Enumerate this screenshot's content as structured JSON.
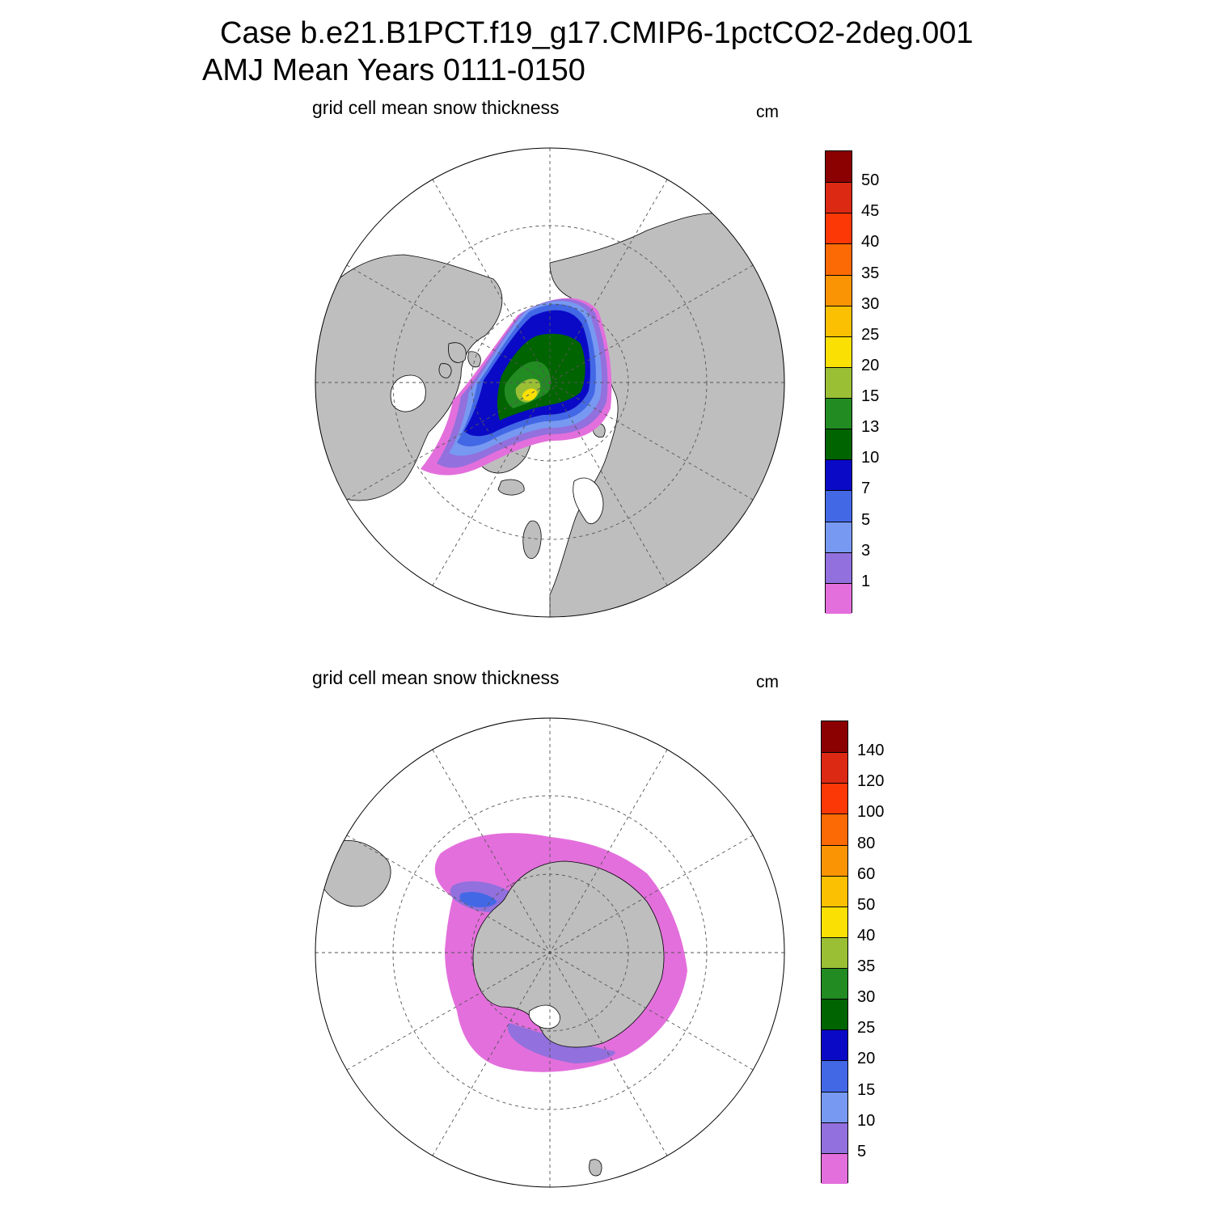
{
  "header": {
    "line1": "Case b.e21.B1PCT.f19_g17.CMIP6-1pctCO2-2deg.001",
    "line2": "AMJ Mean   Years 0111-0150"
  },
  "colors": {
    "land": "#bebebe",
    "palette": [
      "#e36fdc",
      "#9270dd",
      "#7799f1",
      "#4368e6",
      "#0a0ac6",
      "#006400",
      "#228b22",
      "#9abf35",
      "#fbe004",
      "#fbc002",
      "#fb9404",
      "#fb6a04",
      "#fb3806",
      "#dc2914",
      "#8b0000"
    ]
  },
  "panels": [
    {
      "id": "nh",
      "title": "grid cell mean snow thickness",
      "units": "cm",
      "hemisphere": "Northern",
      "colorbar_labels": [
        "50",
        "45",
        "40",
        "35",
        "30",
        "25",
        "20",
        "15",
        "13",
        "10",
        "7",
        "5",
        "3",
        "1"
      ]
    },
    {
      "id": "sh",
      "title": "grid cell mean snow thickness",
      "units": "cm",
      "hemisphere": "Southern",
      "colorbar_labels": [
        "140",
        "120",
        "100",
        "80",
        "60",
        "50",
        "40",
        "35",
        "30",
        "25",
        "20",
        "15",
        "10",
        "5"
      ]
    }
  ]
}
